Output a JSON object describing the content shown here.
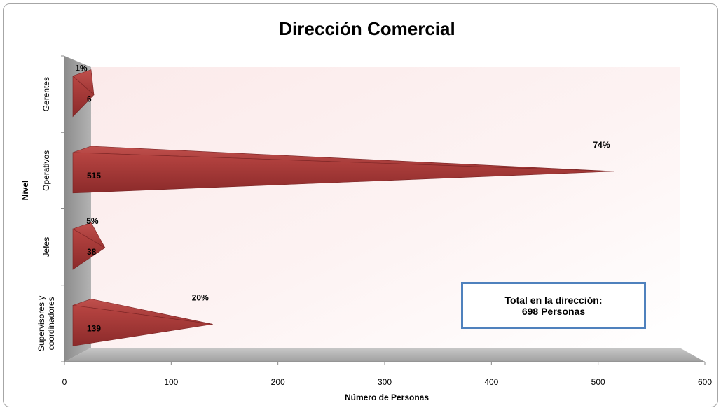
{
  "chart_data": {
    "type": "bar",
    "orientation": "horizontal",
    "title": "Dirección Comercial",
    "xlabel": "Número de Personas",
    "ylabel": "Nivel",
    "xlim": [
      0,
      600
    ],
    "xticks": [
      "0",
      "100",
      "200",
      "300",
      "400",
      "500",
      "600"
    ],
    "categories": [
      "Gerentes",
      "Operativos",
      "Jefes",
      "Supervisores y coordinadores"
    ],
    "values": [
      6,
      515,
      38,
      139
    ],
    "percent_labels": [
      "1%",
      "74%",
      "5%",
      "20%"
    ],
    "bar_shape": "3d-pyramid",
    "bar_color": "#b03a3a",
    "grid": false,
    "legend": "none",
    "annotation": {
      "line1": "Total en la dirección:",
      "line2": "698 Personas",
      "border_color": "#4f81bd"
    }
  }
}
